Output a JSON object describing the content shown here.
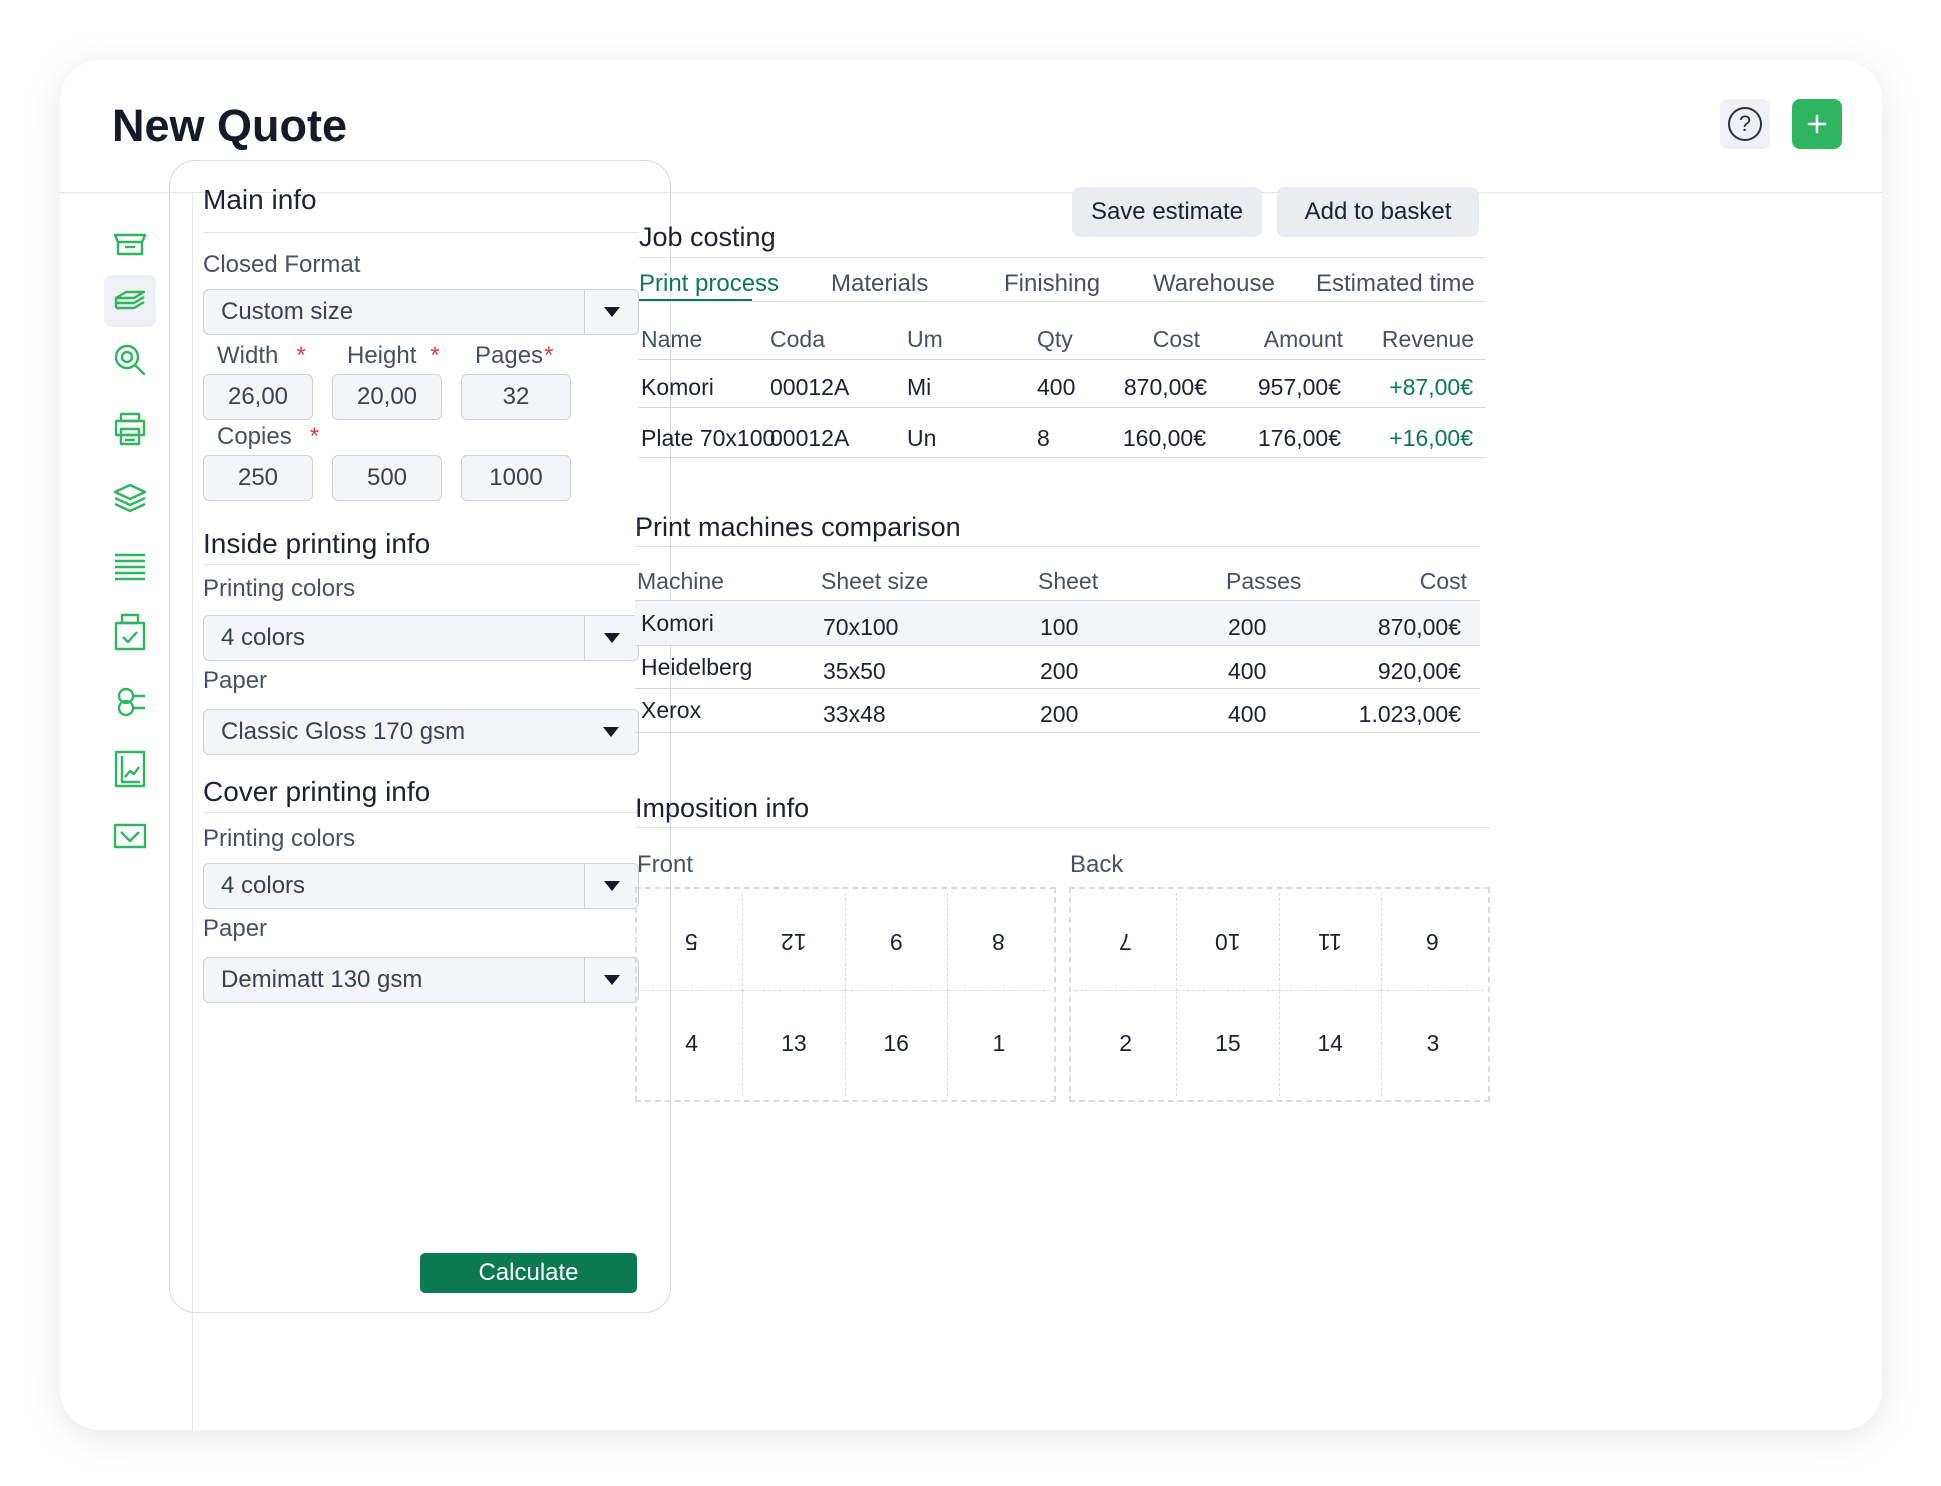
{
  "header": {
    "title": "New Quote",
    "help_icon": "question-circle-icon",
    "add_icon": "plus-icon",
    "accent_color": "#2fb560"
  },
  "sidebar": {
    "icon_color": "#2fb560",
    "items": [
      {
        "icon": "box-open-icon",
        "active": false
      },
      {
        "icon": "paper-stack-icon",
        "active": true
      },
      {
        "icon": "magnifier-icon",
        "active": false
      },
      {
        "icon": "printer-icon",
        "active": false
      },
      {
        "icon": "layers-icon",
        "active": false
      },
      {
        "icon": "sheets-icon",
        "active": false
      },
      {
        "icon": "package-check-icon",
        "active": false
      },
      {
        "icon": "roll-icon",
        "active": false
      },
      {
        "icon": "document-chart-icon",
        "active": false
      },
      {
        "icon": "envelope-check-icon",
        "active": false
      }
    ]
  },
  "form": {
    "main_info_title": "Main info",
    "closed_format_label": "Closed Format",
    "closed_format_value": "Custom size",
    "width_label": "Width",
    "height_label": "Height",
    "pages_label": "Pages",
    "required_mark": "*",
    "width_value": "26,00",
    "height_value": "20,00",
    "pages_value": "32",
    "copies_label": "Copies",
    "copies_values": [
      "250",
      "500",
      "1000"
    ],
    "inside_title": "Inside printing info",
    "inside_colors_label": "Printing colors",
    "inside_colors_value": "4 colors",
    "inside_paper_label": "Paper",
    "inside_paper_value": "Classic Gloss 170 gsm",
    "cover_title": "Cover printing info",
    "cover_colors_label": "Printing colors",
    "cover_colors_value": "4 colors",
    "cover_paper_label": "Paper",
    "cover_paper_value": "Demimatt 130 gsm",
    "calculate_label": "Calculate"
  },
  "actions": {
    "save_label": "Save estimate",
    "basket_label": "Add to basket"
  },
  "job_costing": {
    "title": "Job costing",
    "tabs": [
      "Print process",
      "Materials",
      "Finishing",
      "Warehouse",
      "Estimated time"
    ],
    "active_tab": "Print process",
    "columns": [
      "Name",
      "Coda",
      "Um",
      "Qty",
      "Cost",
      "Amount",
      "Revenue"
    ],
    "rows": [
      [
        "Komori",
        "00012A",
        "Mi",
        "400",
        "870,00€",
        "957,00€",
        "+87,00€"
      ],
      [
        "Plate 70x100",
        "00012A",
        "Un",
        "8",
        "160,00€",
        "176,00€",
        "+16,00€"
      ]
    ]
  },
  "machines": {
    "title": "Print machines comparison",
    "columns": [
      "Machine",
      "Sheet size",
      "Sheet",
      "Passes",
      "Cost"
    ],
    "rows": [
      [
        "Komori",
        "70x100",
        "100",
        "200",
        "870,00€"
      ],
      [
        "Heidelberg",
        "35x50",
        "200",
        "400",
        "920,00€"
      ],
      [
        "Xerox",
        "33x48",
        "200",
        "400",
        "1.023,00€"
      ]
    ]
  },
  "imposition": {
    "title": "Imposition info",
    "front_label": "Front",
    "back_label": "Back",
    "front_top": [
      "5",
      "12",
      "9",
      "8"
    ],
    "front_bottom": [
      "4",
      "13",
      "16",
      "1"
    ],
    "back_top": [
      "7",
      "10",
      "11",
      "6"
    ],
    "back_bottom": [
      "2",
      "15",
      "14",
      "3"
    ]
  }
}
